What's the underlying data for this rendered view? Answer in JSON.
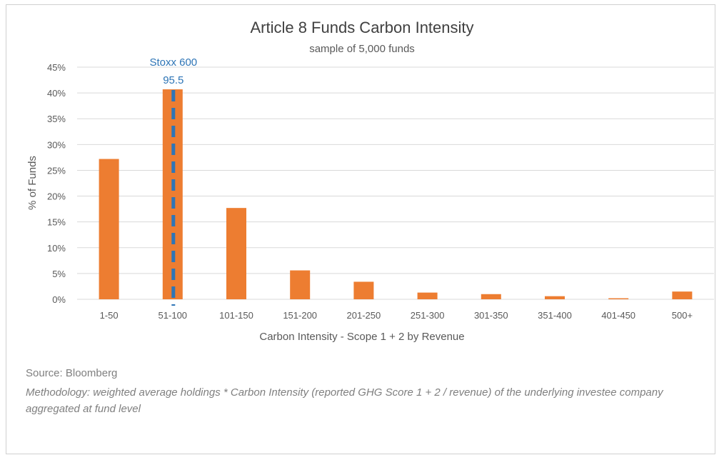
{
  "chart_data": {
    "type": "bar",
    "title": "Article 8 Funds Carbon Intensity",
    "subtitle": "sample of 5,000 funds",
    "xlabel": "Carbon Intensity - Scope 1 + 2 by Revenue",
    "ylabel": "% of Funds",
    "categories": [
      "1-50",
      "51-100",
      "101-150",
      "151-200",
      "201-250",
      "251-300",
      "301-350",
      "351-400",
      "401-450",
      "500+"
    ],
    "values": [
      27.2,
      40.7,
      17.7,
      5.6,
      3.4,
      1.3,
      1.0,
      0.6,
      0.2,
      1.5
    ],
    "ylim": [
      0,
      45
    ],
    "yticks": [
      0,
      5,
      10,
      15,
      20,
      25,
      30,
      35,
      40,
      45
    ],
    "ytick_labels": [
      "0%",
      "5%",
      "10%",
      "15%",
      "20%",
      "25%",
      "30%",
      "35%",
      "40%",
      "45%"
    ],
    "grid": true,
    "bar_color": "#ed7d31",
    "reference_line": {
      "label_line1": "Stoxx 600",
      "label_line2": "95.5",
      "value": 95.5,
      "color": "#2e75b6",
      "style": "dashed"
    }
  },
  "footer": {
    "source": "Source: Bloomberg",
    "methodology": "Methodology: weighted average holdings * Carbon Intensity (reported GHG Score 1 + 2 / revenue) of the underlying investee company aggregated at fund level"
  }
}
